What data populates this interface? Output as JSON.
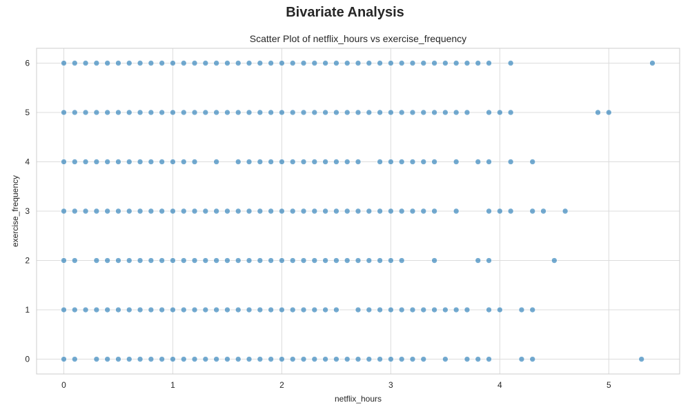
{
  "figure": {
    "suptitle": "Bivariate Analysis"
  },
  "chart_data": {
    "type": "scatter",
    "title": "Scatter Plot of netflix_hours vs exercise_frequency",
    "xlabel": "netflix_hours",
    "ylabel": "exercise_frequency",
    "xlim": [
      -0.25,
      5.65
    ],
    "ylim": [
      -0.3,
      6.3
    ],
    "xticks": [
      0,
      1,
      2,
      3,
      4,
      5
    ],
    "yticks": [
      0,
      1,
      2,
      3,
      4,
      5,
      6
    ],
    "grid": true,
    "point_color": "#1f77b4",
    "points_by_y": {
      "0": [
        0.0,
        0.1,
        0.3,
        0.4,
        0.5,
        0.6,
        0.7,
        0.8,
        0.9,
        1.0,
        1.1,
        1.2,
        1.3,
        1.4,
        1.5,
        1.6,
        1.7,
        1.8,
        1.9,
        2.0,
        2.1,
        2.2,
        2.3,
        2.4,
        2.5,
        2.6,
        2.7,
        2.8,
        2.9,
        3.0,
        3.1,
        3.2,
        3.3,
        3.5,
        3.7,
        3.8,
        3.9,
        4.2,
        4.3,
        5.3
      ],
      "1": [
        0.0,
        0.1,
        0.2,
        0.3,
        0.4,
        0.5,
        0.6,
        0.7,
        0.8,
        0.9,
        1.0,
        1.1,
        1.2,
        1.3,
        1.4,
        1.5,
        1.6,
        1.7,
        1.8,
        1.9,
        2.0,
        2.1,
        2.2,
        2.3,
        2.4,
        2.5,
        2.7,
        2.8,
        2.9,
        3.0,
        3.1,
        3.2,
        3.3,
        3.4,
        3.5,
        3.6,
        3.7,
        3.9,
        4.0,
        4.2,
        4.3
      ],
      "2": [
        0.0,
        0.1,
        0.3,
        0.4,
        0.5,
        0.6,
        0.7,
        0.8,
        0.9,
        1.0,
        1.1,
        1.2,
        1.3,
        1.4,
        1.5,
        1.6,
        1.7,
        1.8,
        1.9,
        2.0,
        2.1,
        2.2,
        2.3,
        2.4,
        2.5,
        2.6,
        2.7,
        2.8,
        2.9,
        3.0,
        3.1,
        3.4,
        3.8,
        3.9,
        4.5
      ],
      "3": [
        0.0,
        0.1,
        0.2,
        0.3,
        0.4,
        0.5,
        0.6,
        0.7,
        0.8,
        0.9,
        1.0,
        1.1,
        1.2,
        1.3,
        1.4,
        1.5,
        1.6,
        1.7,
        1.8,
        1.9,
        2.0,
        2.1,
        2.2,
        2.3,
        2.4,
        2.5,
        2.6,
        2.7,
        2.8,
        2.9,
        3.0,
        3.1,
        3.2,
        3.3,
        3.4,
        3.6,
        3.9,
        4.0,
        4.1,
        4.3,
        4.4,
        4.6
      ],
      "4": [
        0.0,
        0.1,
        0.2,
        0.3,
        0.4,
        0.5,
        0.6,
        0.7,
        0.8,
        0.9,
        1.0,
        1.1,
        1.2,
        1.4,
        1.6,
        1.7,
        1.8,
        1.9,
        2.0,
        2.1,
        2.2,
        2.3,
        2.4,
        2.5,
        2.6,
        2.7,
        2.9,
        3.0,
        3.1,
        3.2,
        3.3,
        3.4,
        3.6,
        3.8,
        3.9,
        4.1,
        4.3
      ],
      "5": [
        0.0,
        0.1,
        0.2,
        0.3,
        0.4,
        0.5,
        0.6,
        0.7,
        0.8,
        0.9,
        1.0,
        1.1,
        1.2,
        1.3,
        1.4,
        1.5,
        1.6,
        1.7,
        1.8,
        1.9,
        2.0,
        2.1,
        2.2,
        2.3,
        2.4,
        2.5,
        2.6,
        2.7,
        2.8,
        2.9,
        3.0,
        3.1,
        3.2,
        3.3,
        3.4,
        3.5,
        3.6,
        3.7,
        3.9,
        4.0,
        4.1,
        4.9,
        5.0
      ],
      "6": [
        0.0,
        0.1,
        0.2,
        0.3,
        0.4,
        0.5,
        0.6,
        0.7,
        0.8,
        0.9,
        1.0,
        1.1,
        1.2,
        1.3,
        1.4,
        1.5,
        1.6,
        1.7,
        1.8,
        1.9,
        2.0,
        2.1,
        2.2,
        2.3,
        2.4,
        2.5,
        2.6,
        2.7,
        2.8,
        2.9,
        3.0,
        3.1,
        3.2,
        3.3,
        3.4,
        3.5,
        3.6,
        3.7,
        3.8,
        3.9,
        4.1,
        5.4
      ]
    }
  }
}
